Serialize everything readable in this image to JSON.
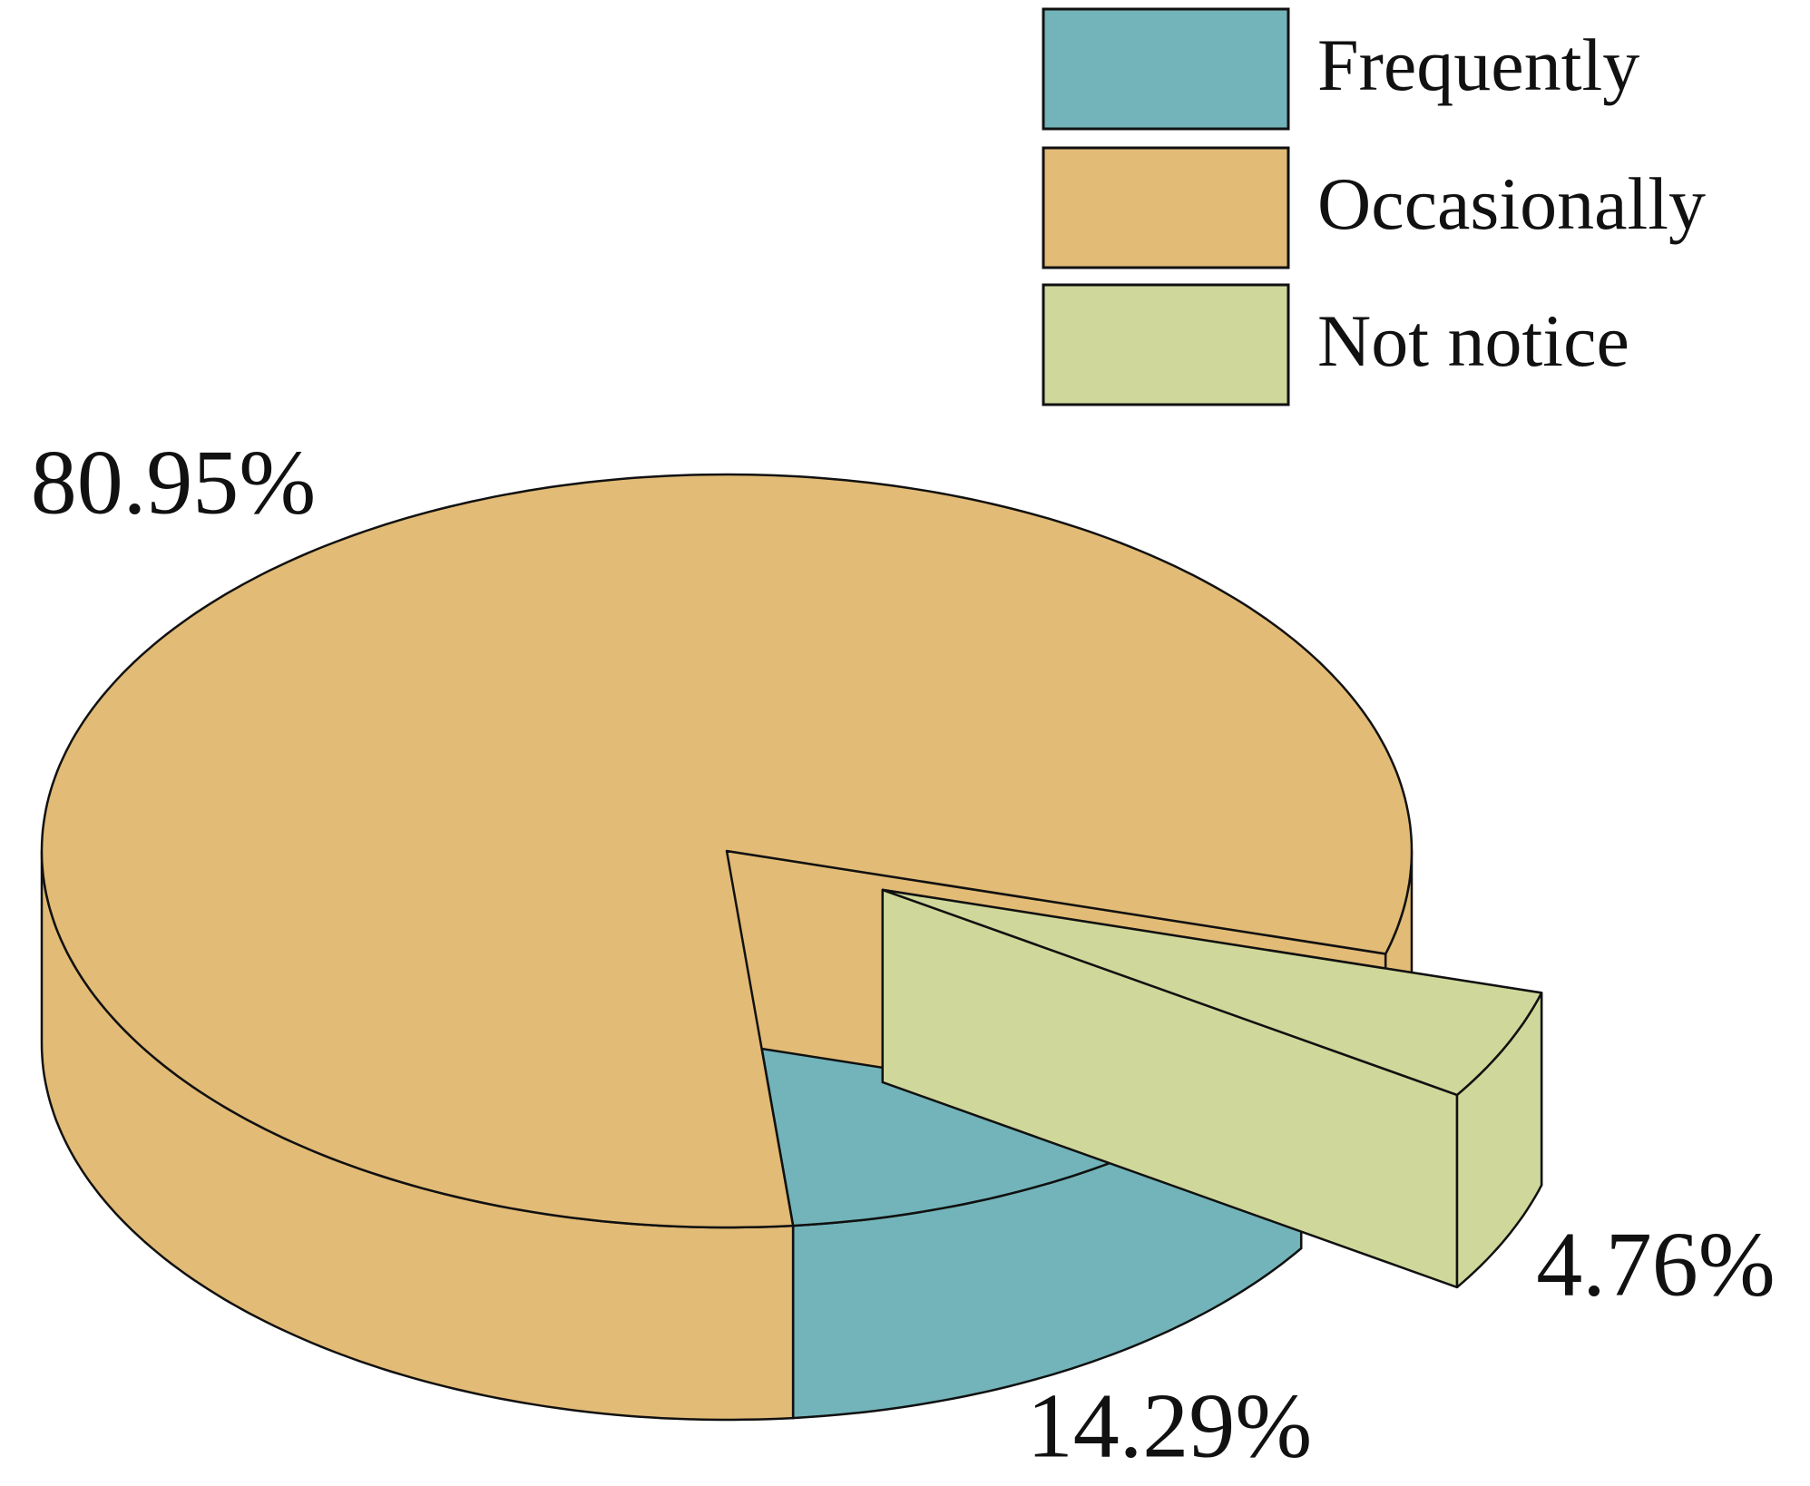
{
  "chart_data": {
    "type": "pie3d",
    "categories": [
      "Frequently",
      "Occasionally",
      "Not notice"
    ],
    "values": [
      14.29,
      80.95,
      4.76
    ],
    "value_labels": [
      "14.29%",
      "80.95%",
      "4.76%"
    ],
    "colors": [
      "#72b4b9",
      "#e2bb76",
      "#cfd89a"
    ],
    "exploded": [
      false,
      false,
      true
    ]
  }
}
